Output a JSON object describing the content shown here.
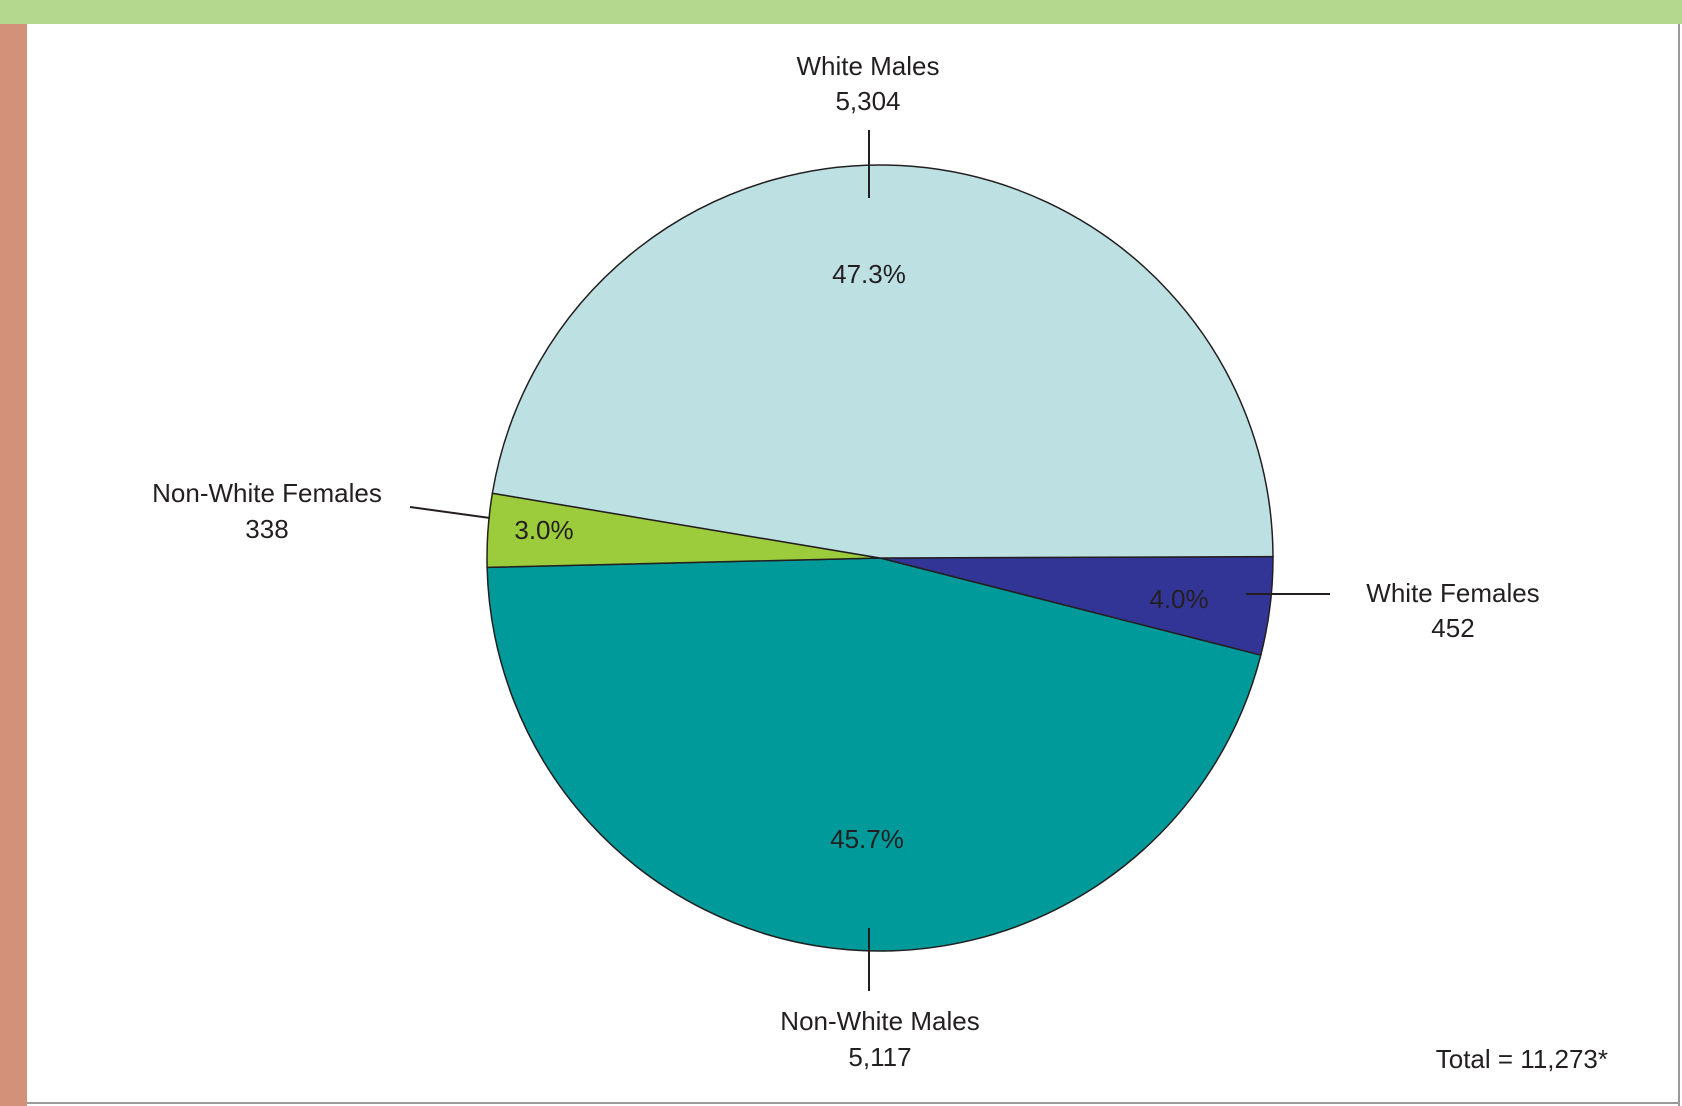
{
  "colors": {
    "top_band": "#b5d88f",
    "left_band": "#d4917a"
  },
  "chart_data": {
    "type": "pie",
    "total_label": "Total = 11,273*",
    "slices": [
      {
        "name": "White Males",
        "value": 5304,
        "value_label": "5,304",
        "pct_label": "47.3%",
        "color": "#bde0e3",
        "pct_color": "#231f20"
      },
      {
        "name": "White Females",
        "value": 452,
        "value_label": "452",
        "pct_label": "4.0%",
        "color": "#333596",
        "pct_color": "#ffffff"
      },
      {
        "name": "Non-White Males",
        "value": 5117,
        "value_label": "5,117",
        "pct_label": "45.7%",
        "color": "#009a9a",
        "pct_color": "#ffffff"
      },
      {
        "name": "Non-White Females",
        "value": 338,
        "value_label": "338",
        "pct_label": "3.0%",
        "color": "#9ccb3b",
        "pct_color": "#231f20"
      }
    ]
  }
}
